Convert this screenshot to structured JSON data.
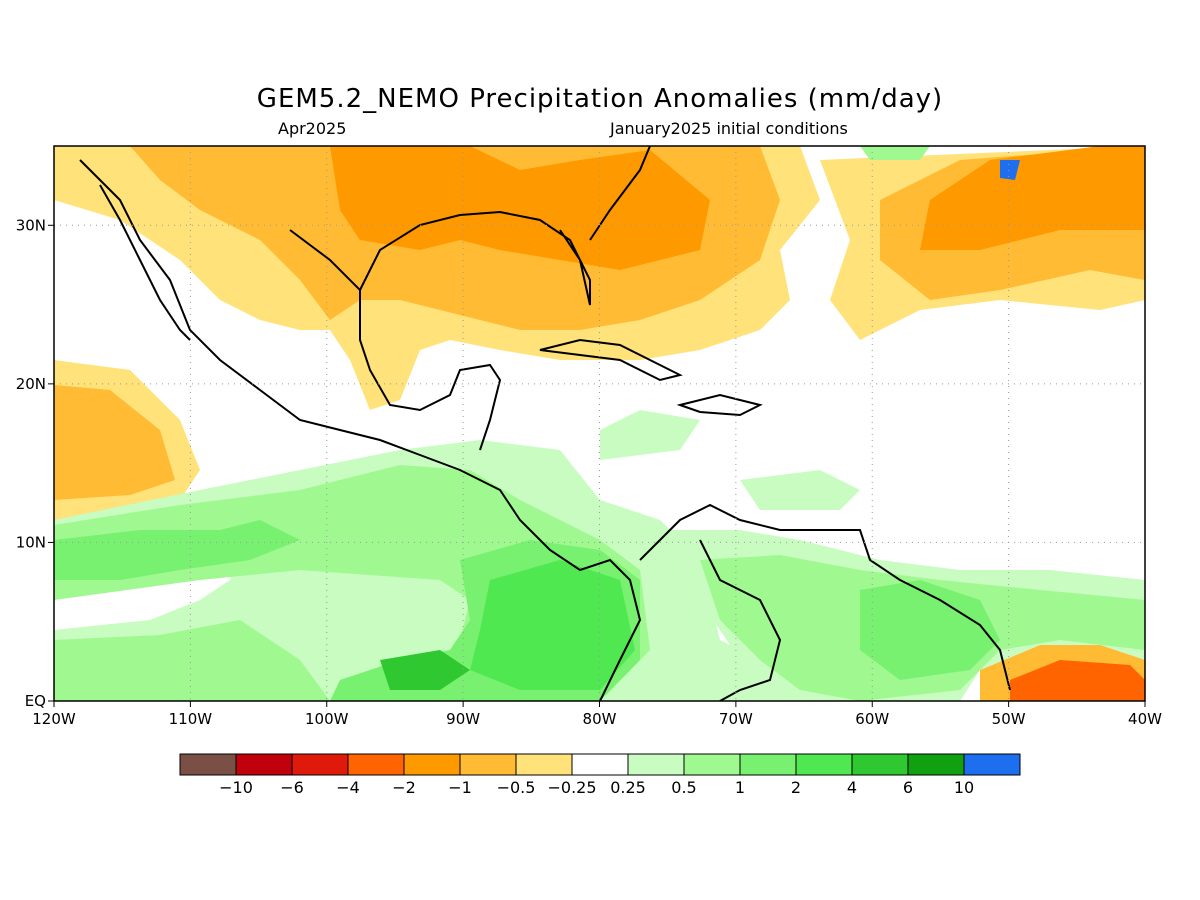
{
  "title": "GEM5.2_NEMO Precipitation Anomalies (mm/day)",
  "subtitle_left": "Apr2025",
  "subtitle_right": "January2025 initial conditions",
  "map": {
    "lon_range": [
      -120,
      -40
    ],
    "lat_range": [
      0,
      35
    ],
    "x_ticks": [
      {
        "value": -120,
        "label": "120W"
      },
      {
        "value": -110,
        "label": "110W"
      },
      {
        "value": -100,
        "label": "100W"
      },
      {
        "value": -90,
        "label": "90W"
      },
      {
        "value": -80,
        "label": "80W"
      },
      {
        "value": -70,
        "label": "70W"
      },
      {
        "value": -60,
        "label": "60W"
      },
      {
        "value": -50,
        "label": "50W"
      },
      {
        "value": -40,
        "label": "40W"
      }
    ],
    "y_ticks": [
      {
        "value": 0,
        "label": "EQ"
      },
      {
        "value": 10,
        "label": "10N"
      },
      {
        "value": 20,
        "label": "20N"
      },
      {
        "value": 30,
        "label": "30N"
      }
    ],
    "grid": "dotted"
  },
  "colorbar": {
    "colors": [
      "#7a4f45",
      "#c0000a",
      "#e01a0a",
      "#ff6400",
      "#ff9900",
      "#ffbb33",
      "#ffe27a",
      "#ffffff",
      "#c8fcc0",
      "#a0f890",
      "#78f070",
      "#50e850",
      "#30c830",
      "#10a010",
      "#1e6ef0"
    ],
    "labels": [
      "−10",
      "−6",
      "−4",
      "−2",
      "−1",
      "−0.5",
      "−0.25",
      "0.25",
      "0.5",
      "1",
      "2",
      "4",
      "6",
      "10"
    ]
  }
}
